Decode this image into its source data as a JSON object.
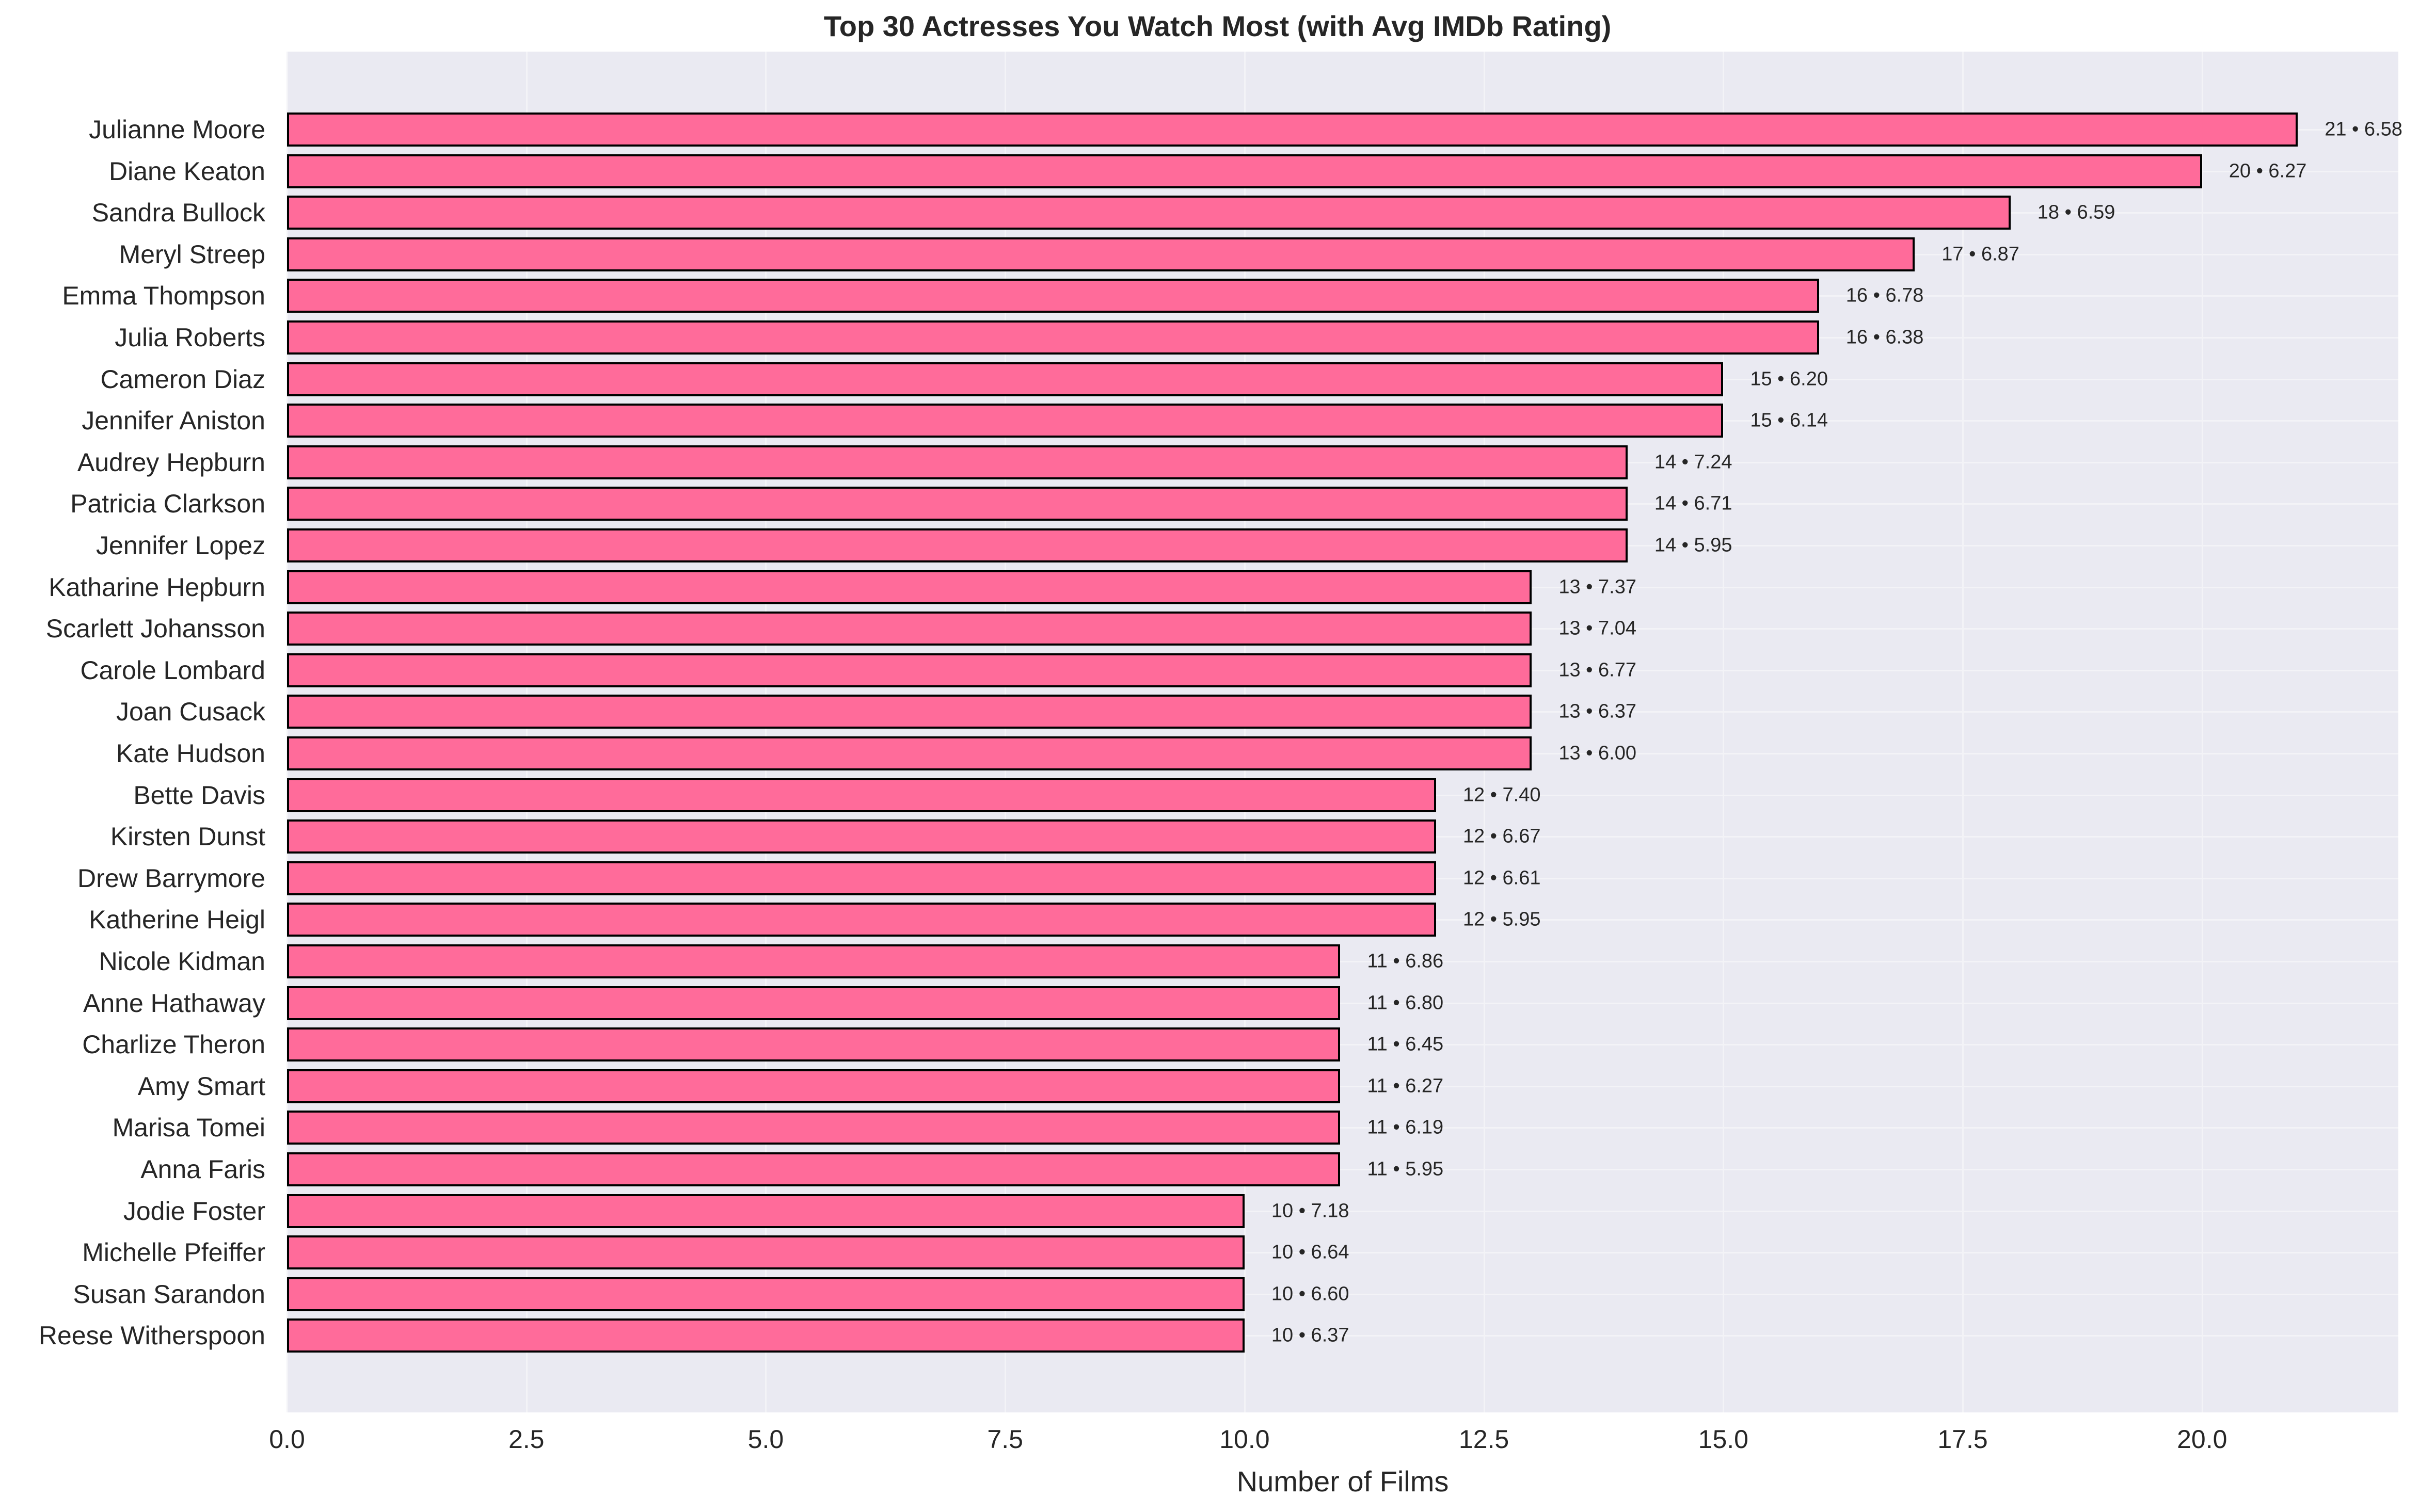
{
  "chart_data": {
    "type": "bar",
    "orientation": "horizontal",
    "title": "Top 30 Actresses You Watch Most (with Avg IMDb Rating)",
    "xlabel": "Number of Films",
    "ylabel": "",
    "xlim": [
      0,
      22.05
    ],
    "xticks": [
      "0.0",
      "2.5",
      "5.0",
      "7.5",
      "10.0",
      "12.5",
      "15.0",
      "17.5",
      "20.0"
    ],
    "xtick_values": [
      0,
      2.5,
      5,
      7.5,
      10,
      12.5,
      15,
      17.5,
      20
    ],
    "grid": true,
    "bar_color": "#ff6b9a",
    "edge_color": "#000000",
    "background": "#eaeaf2",
    "categories": [
      "Julianne Moore",
      "Diane Keaton",
      "Sandra Bullock",
      "Meryl Streep",
      "Emma Thompson",
      "Julia Roberts",
      "Cameron Diaz",
      "Jennifer Aniston",
      "Audrey Hepburn",
      "Patricia Clarkson",
      "Jennifer Lopez",
      "Katharine Hepburn",
      "Scarlett Johansson",
      "Carole Lombard",
      "Joan Cusack",
      "Kate Hudson",
      "Bette Davis",
      "Kirsten Dunst",
      "Drew Barrymore",
      "Katherine Heigl",
      "Nicole Kidman",
      "Anne Hathaway",
      "Charlize Theron",
      "Amy Smart",
      "Marisa Tomei",
      "Anna Faris",
      "Jodie Foster",
      "Michelle Pfeiffer",
      "Susan Sarandon",
      "Reese Witherspoon"
    ],
    "series": [
      {
        "name": "Number of Films",
        "values": [
          21,
          20,
          18,
          17,
          16,
          16,
          15,
          15,
          14,
          14,
          14,
          13,
          13,
          13,
          13,
          13,
          12,
          12,
          12,
          12,
          11,
          11,
          11,
          11,
          11,
          11,
          10,
          10,
          10,
          10
        ]
      },
      {
        "name": "Avg IMDb Rating",
        "values": [
          6.58,
          6.27,
          6.59,
          6.87,
          6.78,
          6.38,
          6.2,
          6.14,
          7.24,
          6.71,
          5.95,
          7.37,
          7.04,
          6.77,
          6.37,
          6.0,
          7.4,
          6.67,
          6.61,
          5.95,
          6.86,
          6.8,
          6.45,
          6.27,
          6.19,
          5.95,
          7.18,
          6.64,
          6.6,
          6.37
        ]
      }
    ],
    "annotations": [
      "21 • 6.58",
      "20 • 6.27",
      "18 • 6.59",
      "17 • 6.87",
      "16 • 6.78",
      "16 • 6.38",
      "15 • 6.20",
      "15 • 6.14",
      "14 • 7.24",
      "14 • 6.71",
      "14 • 5.95",
      "13 • 7.37",
      "13 • 7.04",
      "13 • 6.77",
      "13 • 6.37",
      "13 • 6.00",
      "12 • 7.40",
      "12 • 6.67",
      "12 • 6.61",
      "12 • 5.95",
      "11 • 6.86",
      "11 • 6.80",
      "11 • 6.45",
      "11 • 6.27",
      "11 • 6.19",
      "11 • 5.95",
      "10 • 7.18",
      "10 • 6.64",
      "10 • 6.60",
      "10 • 6.37"
    ]
  }
}
